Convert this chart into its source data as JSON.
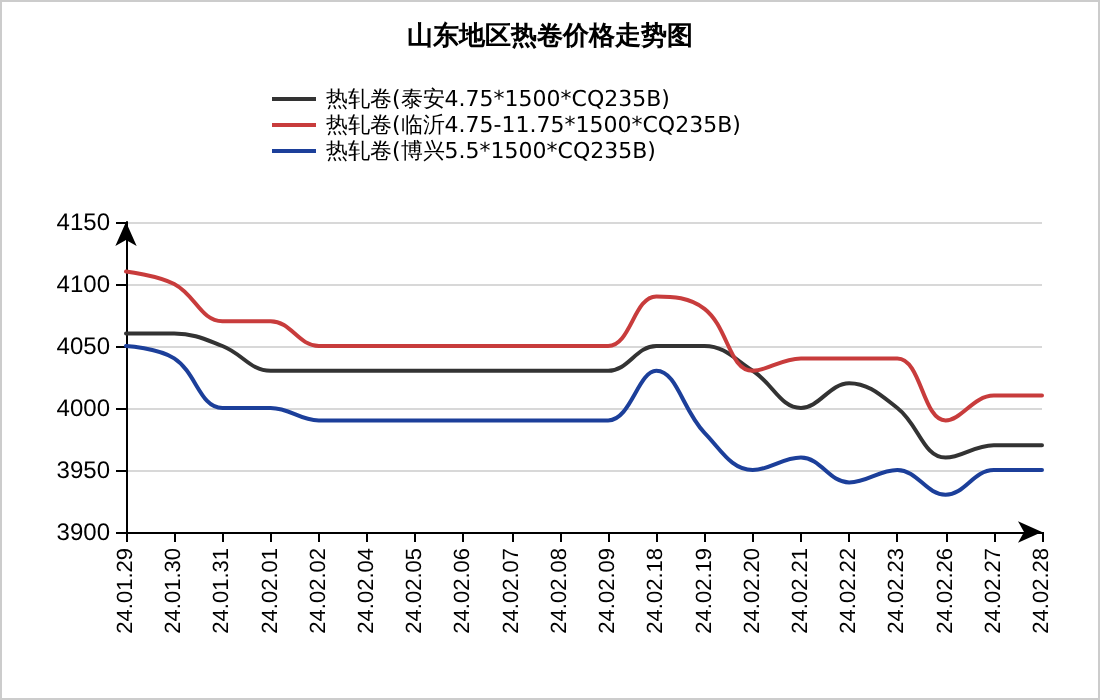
{
  "chart_data": {
    "type": "line",
    "title": "山东地区热卷价格走势图",
    "categories": [
      "24.01.29",
      "24.01.30",
      "24.01.31",
      "24.02.01",
      "24.02.02",
      "24.02.04",
      "24.02.05",
      "24.02.06",
      "24.02.07",
      "24.02.08",
      "24.02.09",
      "24.02.18",
      "24.02.19",
      "24.02.20",
      "24.02.21",
      "24.02.22",
      "24.02.23",
      "24.02.26",
      "24.02.27",
      "24.02.28"
    ],
    "series": [
      {
        "name": "热轧卷(泰安4.75*1500*CQ235B)",
        "color": "#333333",
        "values": [
          4060,
          4060,
          4050,
          4030,
          4030,
          4030,
          4030,
          4030,
          4030,
          4030,
          4030,
          4050,
          4050,
          4030,
          4000,
          4020,
          4000,
          3960,
          3970,
          3970
        ]
      },
      {
        "name": "热轧卷(临沂4.75-11.75*1500*CQ235B)",
        "color": "#c83c3c",
        "values": [
          4110,
          4100,
          4070,
          4070,
          4050,
          4050,
          4050,
          4050,
          4050,
          4050,
          4050,
          4090,
          4080,
          4030,
          4040,
          4040,
          4040,
          3990,
          4010,
          4010
        ]
      },
      {
        "name": "热轧卷(博兴5.5*1500*CQ235B)",
        "color": "#1c3f9a",
        "values": [
          4050,
          4040,
          4000,
          4000,
          3990,
          3990,
          3990,
          3990,
          3990,
          3990,
          3990,
          4030,
          3980,
          3950,
          3960,
          3940,
          3950,
          3930,
          3950,
          3950
        ]
      }
    ],
    "ylim": [
      3900,
      4150
    ],
    "yticks": [
      3900,
      3950,
      4000,
      4050,
      4100,
      4150
    ],
    "grid": "y",
    "legend": "top",
    "marker": "none",
    "line_style": "solid"
  }
}
